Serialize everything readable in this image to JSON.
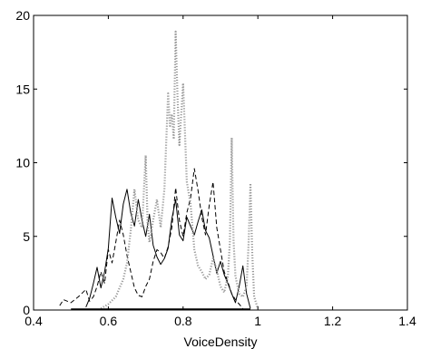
{
  "chart_data": {
    "type": "line",
    "title": "",
    "xlabel": "VoiceDensity",
    "ylabel": "",
    "xlim": [
      0.4,
      1.4
    ],
    "ylim": [
      0,
      20
    ],
    "xticks": [
      0.4,
      0.6,
      0.8,
      1.0,
      1.2,
      1.4
    ],
    "xtick_labels": [
      "0.4",
      "0.6",
      "0.8",
      "1",
      "1.2",
      "1.4"
    ],
    "yticks": [
      0,
      5,
      10,
      15,
      20
    ],
    "ytick_labels": [
      "0",
      "5",
      "10",
      "15",
      "20"
    ],
    "grid": false,
    "legend": "none",
    "series": [
      {
        "style": "solid",
        "color": "#000000",
        "x": [
          0.54,
          0.55,
          0.56,
          0.57,
          0.58,
          0.59,
          0.6,
          0.61,
          0.62,
          0.63,
          0.64,
          0.65,
          0.66,
          0.67,
          0.68,
          0.69,
          0.7,
          0.71,
          0.72,
          0.73,
          0.74,
          0.75,
          0.76,
          0.77,
          0.78,
          0.79,
          0.8,
          0.81,
          0.82,
          0.83,
          0.84,
          0.85,
          0.86,
          0.87,
          0.88,
          0.89,
          0.9,
          0.91,
          0.92,
          0.93,
          0.94,
          0.95,
          0.96,
          0.97,
          0.98
        ],
        "y": [
          0.2,
          0.8,
          1.8,
          2.9,
          1.5,
          2.6,
          4.2,
          7.6,
          6.3,
          5.2,
          7.2,
          8.2,
          6.6,
          5.7,
          7.5,
          6.1,
          5.0,
          6.5,
          4.4,
          3.6,
          3.1,
          3.5,
          4.2,
          6.2,
          7.5,
          5.1,
          4.7,
          6.3,
          5.7,
          5.1,
          6.0,
          6.8,
          5.4,
          4.9,
          3.7,
          2.5,
          3.3,
          2.4,
          1.8,
          1.1,
          0.5,
          1.6,
          3.0,
          1.1,
          0.1
        ]
      },
      {
        "style": "dashed",
        "color": "#000000",
        "x": [
          0.47,
          0.48,
          0.5,
          0.52,
          0.54,
          0.55,
          0.56,
          0.57,
          0.58,
          0.59,
          0.6,
          0.61,
          0.62,
          0.63,
          0.64,
          0.65,
          0.66,
          0.67,
          0.68,
          0.69,
          0.7,
          0.71,
          0.72,
          0.73,
          0.74,
          0.75,
          0.76,
          0.77,
          0.78,
          0.79,
          0.8,
          0.81,
          0.82,
          0.83,
          0.84,
          0.85,
          0.86,
          0.87,
          0.88,
          0.89,
          0.9,
          0.91,
          0.92,
          0.93,
          0.94,
          0.95,
          0.96
        ],
        "y": [
          0.3,
          0.7,
          0.5,
          0.9,
          1.4,
          0.6,
          0.9,
          1.6,
          2.6,
          1.8,
          4.1,
          3.2,
          4.6,
          6.1,
          5.1,
          3.7,
          2.6,
          1.5,
          1.0,
          0.9,
          1.6,
          2.1,
          3.3,
          4.1,
          3.9,
          3.5,
          4.3,
          5.6,
          8.3,
          6.1,
          5.0,
          6.6,
          7.6,
          9.6,
          8.1,
          6.3,
          5.1,
          7.1,
          8.7,
          5.6,
          4.1,
          2.6,
          1.9,
          1.1,
          0.7,
          0.4,
          0.1
        ]
      },
      {
        "style": "dotted",
        "color": "#999999",
        "x": [
          0.58,
          0.6,
          0.62,
          0.64,
          0.65,
          0.66,
          0.67,
          0.68,
          0.69,
          0.7,
          0.705,
          0.71,
          0.72,
          0.73,
          0.74,
          0.75,
          0.76,
          0.765,
          0.77,
          0.775,
          0.78,
          0.785,
          0.79,
          0.8,
          0.805,
          0.81,
          0.82,
          0.83,
          0.84,
          0.85,
          0.86,
          0.87,
          0.88,
          0.89,
          0.9,
          0.91,
          0.92,
          0.925,
          0.93,
          0.935,
          0.94,
          0.95,
          0.96,
          0.97,
          0.975,
          0.98,
          0.985,
          0.99,
          1.0
        ],
        "y": [
          0.1,
          0.4,
          0.9,
          2.1,
          3.2,
          5.4,
          8.2,
          6.1,
          5.6,
          10.5,
          5.9,
          4.6,
          6.1,
          7.5,
          5.6,
          8.2,
          14.7,
          12.5,
          13.3,
          11.6,
          18.9,
          14.6,
          11.2,
          15.4,
          12.0,
          8.7,
          7.2,
          4.1,
          3.0,
          2.6,
          2.1,
          2.4,
          3.5,
          2.7,
          1.6,
          1.2,
          2.3,
          4.6,
          11.7,
          4.7,
          2.3,
          1.1,
          0.9,
          1.6,
          4.4,
          8.6,
          3.9,
          0.9,
          0.1
        ]
      }
    ]
  }
}
